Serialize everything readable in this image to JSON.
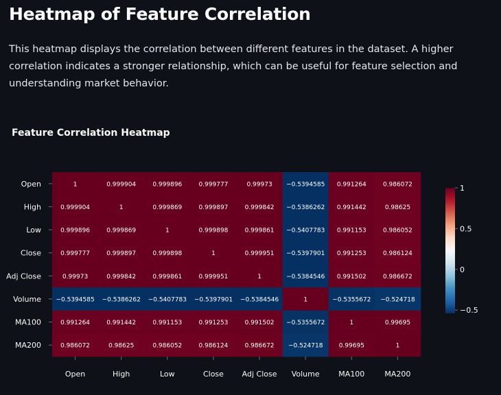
{
  "page": {
    "title": "Heatmap of Feature Correlation",
    "description": "This heatmap displays the correlation between different features in the dataset. A higher correlation indicates a stronger relationship, which can be useful for feature selection and understanding market behavior."
  },
  "chart_data": {
    "type": "heatmap",
    "title": "Feature Correlation Heatmap",
    "x": [
      "Open",
      "High",
      "Low",
      "Close",
      "Adj Close",
      "Volume",
      "MA100",
      "MA200"
    ],
    "y": [
      "Open",
      "High",
      "Low",
      "Close",
      "Adj Close",
      "Volume",
      "MA100",
      "MA200"
    ],
    "z": [
      [
        1,
        0.999904,
        0.999896,
        0.999777,
        0.99973,
        -0.5394585,
        0.991264,
        0.986072
      ],
      [
        0.999904,
        1,
        0.999869,
        0.999897,
        0.999842,
        -0.5386262,
        0.991442,
        0.98625
      ],
      [
        0.999896,
        0.999869,
        1,
        0.999898,
        0.999861,
        -0.5407783,
        0.991153,
        0.986052
      ],
      [
        0.999777,
        0.999897,
        0.999898,
        1,
        0.999951,
        -0.5397901,
        0.991253,
        0.986124
      ],
      [
        0.99973,
        0.999842,
        0.999861,
        0.999951,
        1,
        -0.5384546,
        0.991502,
        0.986672
      ],
      [
        -0.5394585,
        -0.5386262,
        -0.5407783,
        -0.5397901,
        -0.5384546,
        1,
        -0.5355672,
        -0.524718
      ],
      [
        0.991264,
        0.991442,
        0.991153,
        0.991253,
        0.991502,
        -0.5355672,
        1,
        0.99695
      ],
      [
        0.986072,
        0.98625,
        0.986052,
        0.986124,
        0.986672,
        -0.524718,
        0.99695,
        1
      ]
    ],
    "colorscale": "RdBu reversed",
    "zmin": -0.5407783,
    "zmax": 1,
    "colorbar_ticks": [
      "1",
      "0.5",
      "0",
      "−0.5"
    ],
    "colorbar_tick_values": [
      1,
      0.5,
      0,
      -0.5
    ]
  }
}
